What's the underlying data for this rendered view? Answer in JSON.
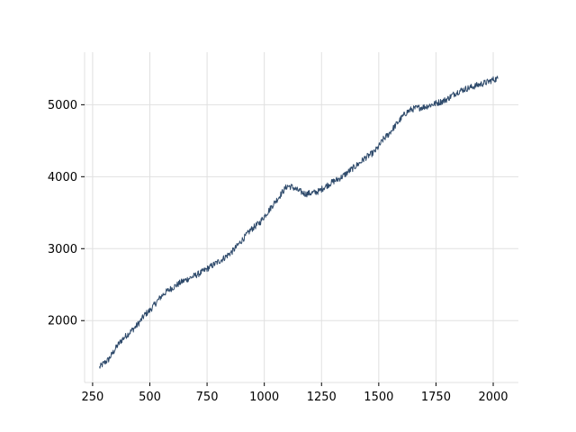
{
  "chart_data": {
    "type": "line",
    "title": "",
    "xlabel": "",
    "ylabel": "",
    "xlim": [
      215,
      2110
    ],
    "ylim": [
      1140,
      5730
    ],
    "xticks": [
      250,
      500,
      750,
      1000,
      1250,
      1500,
      1750,
      2000
    ],
    "yticks": [
      2000,
      3000,
      4000,
      5000
    ],
    "grid": true,
    "legend": "none",
    "line_color": "#2e4a6b",
    "grid_color": "#e0e0e0",
    "series": [
      {
        "x": [
          280,
          300,
          320,
          340,
          360,
          380,
          400,
          420,
          440,
          460,
          480,
          500,
          520,
          540,
          560,
          580,
          600,
          620,
          640,
          660,
          680,
          700,
          720,
          740,
          760,
          780,
          800,
          820,
          840,
          860,
          880,
          900,
          920,
          940,
          960,
          980,
          1000,
          1020,
          1040,
          1060,
          1080,
          1100,
          1120,
          1140,
          1160,
          1180,
          1200,
          1220,
          1240,
          1260,
          1280,
          1300,
          1320,
          1340,
          1360,
          1380,
          1400,
          1420,
          1440,
          1460,
          1480,
          1500,
          1520,
          1540,
          1560,
          1580,
          1600,
          1620,
          1640,
          1660,
          1680,
          1700,
          1720,
          1740,
          1760,
          1780,
          1800,
          1820,
          1840,
          1860,
          1880,
          1900,
          1920,
          1940,
          1960,
          1980,
          2000,
          2020
        ],
        "y": [
          1350,
          1410,
          1460,
          1560,
          1660,
          1740,
          1800,
          1860,
          1920,
          2000,
          2090,
          2140,
          2220,
          2300,
          2370,
          2420,
          2460,
          2500,
          2540,
          2570,
          2600,
          2630,
          2660,
          2700,
          2740,
          2780,
          2820,
          2860,
          2910,
          2960,
          3030,
          3110,
          3180,
          3260,
          3310,
          3360,
          3450,
          3530,
          3620,
          3700,
          3790,
          3870,
          3860,
          3820,
          3790,
          3760,
          3770,
          3780,
          3800,
          3850,
          3890,
          3930,
          3960,
          4000,
          4050,
          4100,
          4150,
          4200,
          4260,
          4300,
          4340,
          4420,
          4520,
          4580,
          4660,
          4740,
          4820,
          4890,
          4930,
          4950,
          4960,
          4970,
          4990,
          5010,
          5030,
          5050,
          5080,
          5130,
          5170,
          5200,
          5220,
          5240,
          5260,
          5280,
          5300,
          5320,
          5350,
          5360
        ]
      }
    ]
  }
}
